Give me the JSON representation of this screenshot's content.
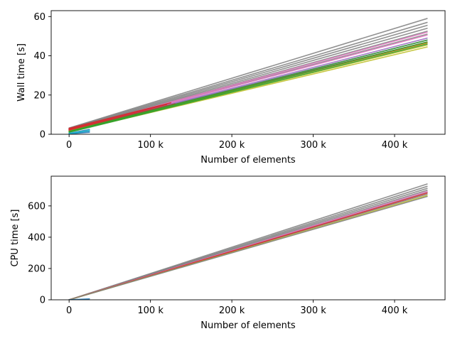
{
  "chart_data": [
    {
      "type": "line",
      "title": "",
      "xlabel": "Number of elements",
      "ylabel": "Wall time [s]",
      "xlim": [
        -22000,
        462000
      ],
      "ylim": [
        0,
        63
      ],
      "xticks": [
        0,
        100000,
        200000,
        300000,
        400000
      ],
      "xtick_labels": [
        "0",
        "100 k",
        "200 k",
        "300 k",
        "400 k"
      ],
      "yticks": [
        0,
        20,
        40,
        60
      ],
      "ytick_labels": [
        "0",
        "20",
        "40",
        "60"
      ],
      "grid": false,
      "legend": "none",
      "series": [
        {
          "color": "#7f7f7f",
          "x": [
            0,
            440000
          ],
          "y": [
            3.2,
            59.0
          ]
        },
        {
          "color": "#7f7f7f",
          "x": [
            0,
            440000
          ],
          "y": [
            3.0,
            57.0
          ]
        },
        {
          "color": "#7f7f7f",
          "x": [
            0,
            440000
          ],
          "y": [
            2.8,
            55.5
          ]
        },
        {
          "color": "#7f7f7f",
          "x": [
            0,
            440000
          ],
          "y": [
            2.6,
            54.0
          ]
        },
        {
          "color": "#7f7f7f",
          "x": [
            0,
            440000
          ],
          "y": [
            2.5,
            52.5
          ]
        },
        {
          "color": "#7f7f7f",
          "x": [
            0,
            440000
          ],
          "y": [
            2.4,
            51.0
          ]
        },
        {
          "color": "#e377c2",
          "x": [
            0,
            440000
          ],
          "y": [
            2.3,
            52.0
          ]
        },
        {
          "color": "#e377c2",
          "x": [
            0,
            440000
          ],
          "y": [
            2.2,
            50.5
          ]
        },
        {
          "color": "#9467bd",
          "x": [
            0,
            440000
          ],
          "y": [
            2.1,
            49.0
          ]
        },
        {
          "color": "#9467bd",
          "x": [
            0,
            440000
          ],
          "y": [
            2.0,
            48.0
          ]
        },
        {
          "color": "#8c564b",
          "x": [
            0,
            440000
          ],
          "y": [
            2.0,
            47.0
          ]
        },
        {
          "color": "#ff7f0e",
          "x": [
            0,
            440000
          ],
          "y": [
            1.8,
            46.5
          ]
        },
        {
          "color": "#d62728",
          "x": [
            0,
            125000
          ],
          "y": [
            3.0,
            16.0
          ]
        },
        {
          "color": "#d62728",
          "x": [
            0,
            120000
          ],
          "y": [
            2.6,
            15.2
          ]
        },
        {
          "color": "#d62728",
          "x": [
            0,
            130000
          ],
          "y": [
            2.2,
            15.5
          ]
        },
        {
          "color": "#bcbd22",
          "x": [
            0,
            440000
          ],
          "y": [
            1.4,
            45.5
          ]
        },
        {
          "color": "#bcbd22",
          "x": [
            0,
            440000
          ],
          "y": [
            1.2,
            44.5
          ]
        },
        {
          "color": "#2ca02c",
          "x": [
            0,
            440000
          ],
          "y": [
            1.5,
            48.0
          ]
        },
        {
          "color": "#2ca02c",
          "x": [
            0,
            440000
          ],
          "y": [
            1.2,
            47.0
          ]
        },
        {
          "color": "#2ca02c",
          "x": [
            0,
            440000
          ],
          "y": [
            1.0,
            46.0
          ]
        },
        {
          "color": "#1f77b4",
          "x": [
            0,
            25000
          ],
          "y": [
            0.5,
            2.5
          ]
        },
        {
          "color": "#1f77b4",
          "x": [
            0,
            25000
          ],
          "y": [
            0.3,
            1.6
          ]
        },
        {
          "color": "#1f77b4",
          "x": [
            0,
            25000
          ],
          "y": [
            0.2,
            1.0
          ]
        },
        {
          "color": "#17becf",
          "x": [
            0,
            25000
          ],
          "y": [
            0.4,
            1.9
          ]
        }
      ]
    },
    {
      "type": "line",
      "title": "",
      "xlabel": "Number of elements",
      "ylabel": "CPU time [s]",
      "xlim": [
        -22000,
        462000
      ],
      "ylim": [
        0,
        790
      ],
      "xticks": [
        0,
        100000,
        200000,
        300000,
        400000
      ],
      "xtick_labels": [
        "0",
        "100 k",
        "200 k",
        "300 k",
        "400 k"
      ],
      "yticks": [
        0,
        200,
        400,
        600
      ],
      "ytick_labels": [
        "0",
        "200",
        "400",
        "600"
      ],
      "grid": false,
      "legend": "none",
      "series": [
        {
          "color": "#7f7f7f",
          "x": [
            0,
            440000
          ],
          "y": [
            0,
            740
          ]
        },
        {
          "color": "#7f7f7f",
          "x": [
            0,
            440000
          ],
          "y": [
            0,
            725
          ]
        },
        {
          "color": "#7f7f7f",
          "x": [
            0,
            440000
          ],
          "y": [
            0,
            712
          ]
        },
        {
          "color": "#7f7f7f",
          "x": [
            0,
            440000
          ],
          "y": [
            0,
            700
          ]
        },
        {
          "color": "#7f7f7f",
          "x": [
            0,
            440000
          ],
          "y": [
            0,
            688
          ]
        },
        {
          "color": "#7f7f7f",
          "x": [
            0,
            440000
          ],
          "y": [
            0,
            675
          ]
        },
        {
          "color": "#e377c2",
          "x": [
            0,
            440000
          ],
          "y": [
            0,
            692
          ]
        },
        {
          "color": "#d62728",
          "x": [
            0,
            440000
          ],
          "y": [
            0,
            682
          ]
        },
        {
          "color": "#bcbd22",
          "x": [
            0,
            440000
          ],
          "y": [
            0,
            666
          ]
        },
        {
          "color": "#7f7f7f",
          "x": [
            0,
            440000
          ],
          "y": [
            0,
            660
          ]
        },
        {
          "color": "#1f77b4",
          "x": [
            0,
            25000
          ],
          "y": [
            0,
            6
          ]
        }
      ]
    }
  ]
}
